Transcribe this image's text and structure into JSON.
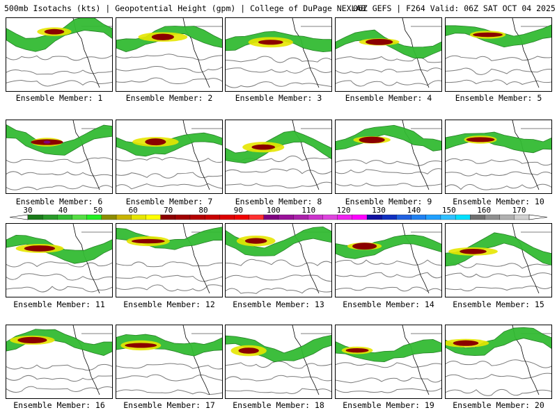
{
  "header": {
    "title": "500mb Isotachs (kts) | Geopotential Height (gpm) | College of DuPage NEXLAB",
    "run_info": "06Z GEFS | F264 Valid: 06Z SAT OCT 04 2025"
  },
  "colorbar": {
    "labels": [
      "30",
      "40",
      "50",
      "60",
      "70",
      "80",
      "90",
      "100",
      "110",
      "120",
      "130",
      "140",
      "150",
      "160",
      "170"
    ],
    "colors": [
      "#1a7a1a",
      "#2a9a2a",
      "#33bb33",
      "#55dd44",
      "#22ee22",
      "#8c8c00",
      "#c8b400",
      "#e6e600",
      "#ffff00",
      "#8b0000",
      "#a00000",
      "#b40000",
      "#c80000",
      "#dc0000",
      "#f00000",
      "#ff3030",
      "#800080",
      "#991199",
      "#aa22aa",
      "#cc33cc",
      "#dd44dd",
      "#ee22ee",
      "#ff00ff",
      "#1010a0",
      "#1030c0",
      "#2060e0",
      "#2080f0",
      "#20a0ff",
      "#30c0ff",
      "#00e0ff",
      "#707070",
      "#909090",
      "#b0b0b0",
      "#d0d0d0"
    ]
  },
  "colors": {
    "dark_green": "#1a7a1a",
    "green": "#33bb33",
    "olive": "#8c8c00",
    "yellow": "#e6e600",
    "dark_red": "#8b0000",
    "purple": "#800080",
    "contour": "#7a7a7a",
    "coast": "#000000"
  },
  "members": [
    {
      "label": "Ensemble Member: 1"
    },
    {
      "label": "Ensemble Member: 2"
    },
    {
      "label": "Ensemble Member: 3"
    },
    {
      "label": "Ensemble Member: 4"
    },
    {
      "label": "Ensemble Member: 5"
    },
    {
      "label": "Ensemble Member: 6"
    },
    {
      "label": "Ensemble Member: 7"
    },
    {
      "label": "Ensemble Member: 8"
    },
    {
      "label": "Ensemble Member: 9"
    },
    {
      "label": "Ensemble Member: 10"
    },
    {
      "label": "Ensemble Member: 11"
    },
    {
      "label": "Ensemble Member: 12"
    },
    {
      "label": "Ensemble Member: 13"
    },
    {
      "label": "Ensemble Member: 14"
    },
    {
      "label": "Ensemble Member: 15"
    },
    {
      "label": "Ensemble Member: 16"
    },
    {
      "label": "Ensemble Member: 17"
    },
    {
      "label": "Ensemble Member: 18"
    },
    {
      "label": "Ensemble Member: 19"
    },
    {
      "label": "Ensemble Member: 20"
    }
  ]
}
